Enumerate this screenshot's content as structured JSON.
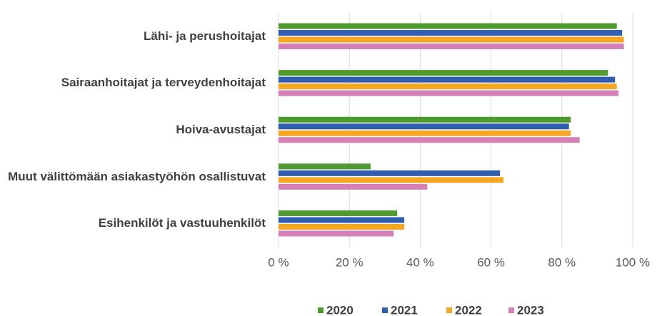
{
  "chart_data": {
    "type": "barh",
    "categories": [
      "Lähi- ja perushoitajat",
      "Sairaanhoitajat ja terveydenhoitajat",
      "Hoiva-avustajat",
      "Muut välittömään asiakastyöhön osallistuvat",
      "Esihenkilöt ja vastuuhenkilöt"
    ],
    "series": [
      {
        "name": "2020",
        "color": "#4e9a2f",
        "values": [
          95.5,
          93,
          82.5,
          26,
          33.5
        ]
      },
      {
        "name": "2021",
        "color": "#2f5db0",
        "values": [
          97,
          95,
          82,
          62.5,
          35.5
        ]
      },
      {
        "name": "2022",
        "color": "#f5a623",
        "values": [
          97.5,
          95.5,
          82.5,
          63.5,
          35.5
        ]
      },
      {
        "name": "2023",
        "color": "#d47fb5",
        "values": [
          97.5,
          96,
          85,
          42,
          32.5
        ]
      }
    ],
    "xlim": [
      0,
      100
    ],
    "xticks": [
      {
        "value": 0,
        "label": "0 %"
      },
      {
        "value": 20,
        "label": "20 %"
      },
      {
        "value": 40,
        "label": "40 %"
      },
      {
        "value": 60,
        "label": "60 %"
      },
      {
        "value": 80,
        "label": "80 %"
      },
      {
        "value": 100,
        "label": "100 %"
      }
    ],
    "grid": true,
    "legend": "bottom"
  }
}
